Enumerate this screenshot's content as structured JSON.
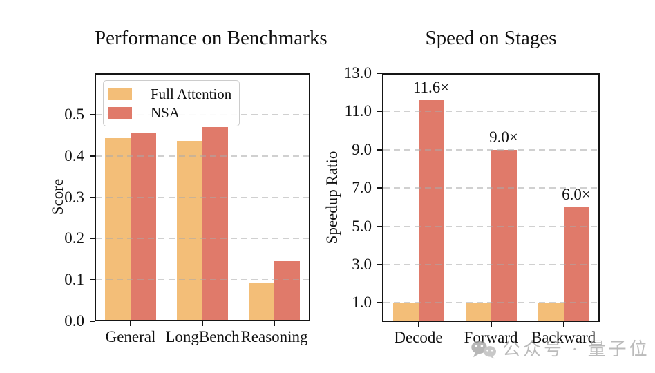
{
  "colors": {
    "full_attention": "#F3BE78",
    "nsa": "#E07A6A",
    "grid": "#cccccc",
    "spine": "#151515",
    "watermark": "#a9a9a9"
  },
  "watermark": {
    "icon": "wechat-bubbles-icon",
    "text": "公众号 · 量子位"
  },
  "chart_data": [
    {
      "type": "bar",
      "title": "Performance on Benchmarks",
      "xlabel": "",
      "ylabel": "Score",
      "categories": [
        "General",
        "LongBench",
        "Reasoning"
      ],
      "series": [
        {
          "name": "Full Attention",
          "color": "#F3BE78",
          "values": [
            0.443,
            0.437,
            0.092
          ]
        },
        {
          "name": "NSA",
          "color": "#E07A6A",
          "values": [
            0.456,
            0.469,
            0.146
          ]
        }
      ],
      "ylim": [
        0,
        0.6
      ],
      "yticks": [
        0.0,
        0.1,
        0.2,
        0.3,
        0.4,
        0.5
      ],
      "ytick_labels": [
        "0.0",
        "0.1",
        "0.2",
        "0.3",
        "0.4",
        "0.5"
      ],
      "grid": true,
      "legend_position": "upper-left"
    },
    {
      "type": "bar",
      "title": "Speed on Stages",
      "xlabel": "",
      "ylabel": "Speedup Ratio",
      "categories": [
        "Decode",
        "Forward",
        "Backward"
      ],
      "series": [
        {
          "name": "Full Attention",
          "color": "#F3BE78",
          "values": [
            1.0,
            1.0,
            1.0
          ]
        },
        {
          "name": "NSA",
          "color": "#E07A6A",
          "values": [
            11.6,
            9.0,
            6.0
          ]
        }
      ],
      "bar_labels": {
        "series": "NSA",
        "labels": [
          "11.6×",
          "9.0×",
          "6.0×"
        ]
      },
      "ylim": [
        0,
        13
      ],
      "yticks": [
        1.0,
        3.0,
        5.0,
        7.0,
        9.0,
        11.0,
        13.0
      ],
      "ytick_labels": [
        "1.0",
        "3.0",
        "5.0",
        "7.0",
        "9.0",
        "11.0",
        "13.0"
      ],
      "grid": true
    }
  ]
}
